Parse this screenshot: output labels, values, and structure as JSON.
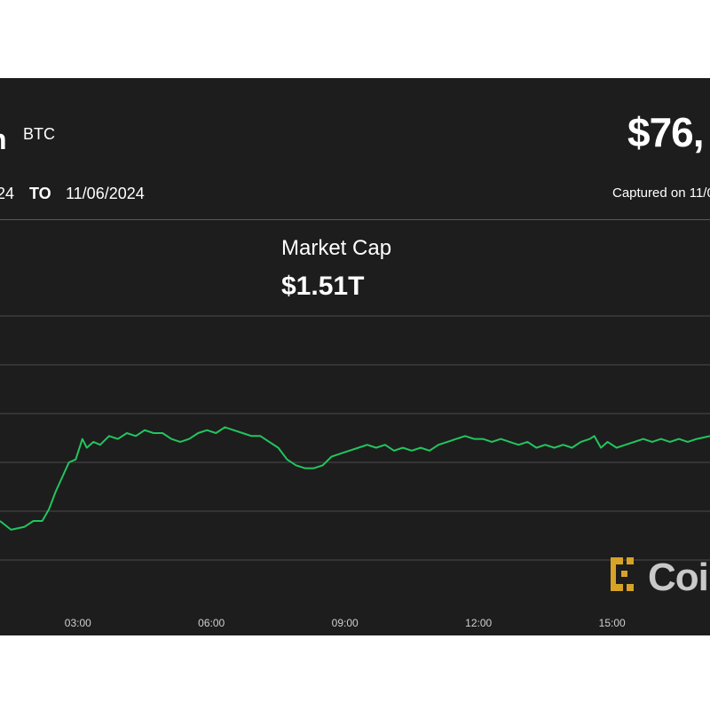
{
  "header": {
    "coin_name_partial": "n",
    "coin_symbol": "BTC",
    "price_partial": "$76,",
    "range_from_partial": "24",
    "range_to_label": "TO",
    "range_end": "11/06/2024",
    "captured_partial": "Captured on 11/0"
  },
  "metric": {
    "label": "Market Cap",
    "value": "$1.51T"
  },
  "logo": {
    "text_partial": "Coi",
    "icon": "coindesk-bracket-icon",
    "color": "#d6a326"
  },
  "colors": {
    "background": "#1d1d1d",
    "line": "#22c55e",
    "grid": "#4a4a4a"
  },
  "chart_data": {
    "type": "line",
    "x_tick_labels": [
      "03:00",
      "06:00",
      "09:00",
      "12:00",
      "15:00"
    ],
    "x_ticks_hours": [
      3,
      6,
      9,
      12,
      15
    ],
    "x_range_hours": [
      1.25,
      17.2
    ],
    "y_range_index": [
      0,
      100
    ],
    "grid": true,
    "series": [
      {
        "points": [
          [
            1.25,
            30
          ],
          [
            1.5,
            27
          ],
          [
            1.8,
            28
          ],
          [
            2.0,
            30
          ],
          [
            2.2,
            30
          ],
          [
            2.35,
            34
          ],
          [
            2.5,
            40
          ],
          [
            2.65,
            45
          ],
          [
            2.8,
            50
          ],
          [
            2.95,
            51
          ],
          [
            3.1,
            58
          ],
          [
            3.2,
            55
          ],
          [
            3.35,
            57
          ],
          [
            3.5,
            56
          ],
          [
            3.7,
            59
          ],
          [
            3.9,
            58
          ],
          [
            4.1,
            60
          ],
          [
            4.3,
            59
          ],
          [
            4.5,
            61
          ],
          [
            4.7,
            60
          ],
          [
            4.9,
            60
          ],
          [
            5.1,
            58
          ],
          [
            5.3,
            57
          ],
          [
            5.5,
            58
          ],
          [
            5.7,
            60
          ],
          [
            5.9,
            61
          ],
          [
            6.1,
            60
          ],
          [
            6.3,
            62
          ],
          [
            6.5,
            61
          ],
          [
            6.7,
            60
          ],
          [
            6.9,
            59
          ],
          [
            7.1,
            59
          ],
          [
            7.3,
            57
          ],
          [
            7.5,
            55
          ],
          [
            7.7,
            51
          ],
          [
            7.9,
            49
          ],
          [
            8.1,
            48
          ],
          [
            8.3,
            48
          ],
          [
            8.5,
            49
          ],
          [
            8.7,
            52
          ],
          [
            8.9,
            53
          ],
          [
            9.1,
            54
          ],
          [
            9.3,
            55
          ],
          [
            9.5,
            56
          ],
          [
            9.7,
            55
          ],
          [
            9.9,
            56
          ],
          [
            10.1,
            54
          ],
          [
            10.3,
            55
          ],
          [
            10.5,
            54
          ],
          [
            10.7,
            55
          ],
          [
            10.9,
            54
          ],
          [
            11.1,
            56
          ],
          [
            11.3,
            57
          ],
          [
            11.5,
            58
          ],
          [
            11.7,
            59
          ],
          [
            11.9,
            58
          ],
          [
            12.1,
            58
          ],
          [
            12.3,
            57
          ],
          [
            12.5,
            58
          ],
          [
            12.7,
            57
          ],
          [
            12.9,
            56
          ],
          [
            13.1,
            57
          ],
          [
            13.3,
            55
          ],
          [
            13.5,
            56
          ],
          [
            13.7,
            55
          ],
          [
            13.9,
            56
          ],
          [
            14.1,
            55
          ],
          [
            14.3,
            57
          ],
          [
            14.5,
            58
          ],
          [
            14.6,
            59
          ],
          [
            14.75,
            55
          ],
          [
            14.9,
            57
          ],
          [
            15.1,
            55
          ],
          [
            15.3,
            56
          ],
          [
            15.5,
            57
          ],
          [
            15.7,
            58
          ],
          [
            15.9,
            57
          ],
          [
            16.1,
            58
          ],
          [
            16.3,
            57
          ],
          [
            16.5,
            58
          ],
          [
            16.7,
            57
          ],
          [
            16.9,
            58
          ],
          [
            17.2,
            59
          ]
        ]
      }
    ]
  }
}
